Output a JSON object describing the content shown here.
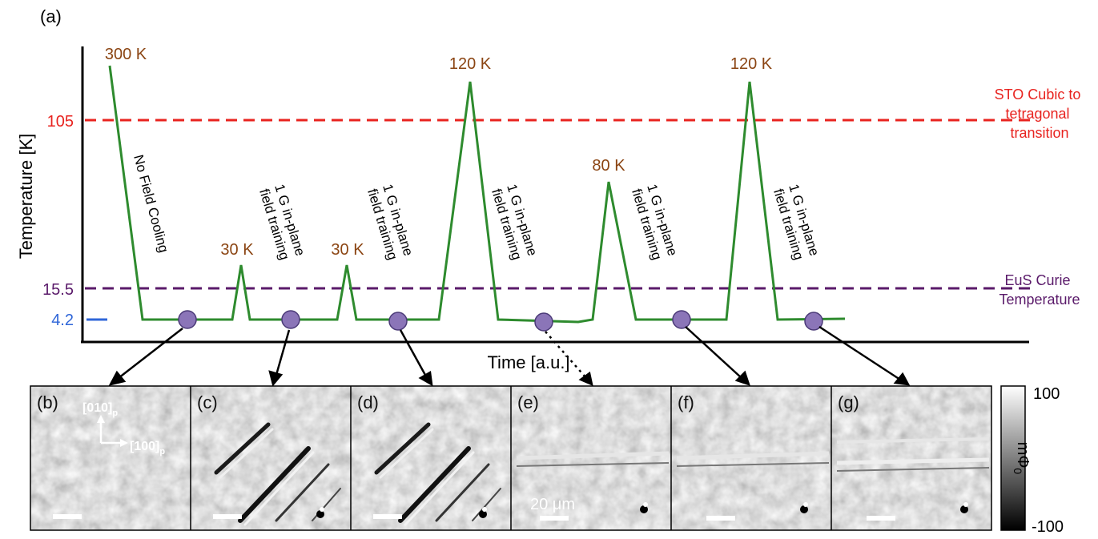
{
  "panel_letter": "(a)",
  "chart_data": {
    "type": "line",
    "xlabel": "Time [a.u.]",
    "ylabel": "Temperature [K]",
    "y_ticks": [
      {
        "value": 105,
        "label": "105",
        "color": "#e8231f"
      },
      {
        "value": 15.5,
        "label": "15.5",
        "color": "#5a1a6a"
      },
      {
        "value": 4.2,
        "label": "4.2",
        "color": "#2f66d8"
      }
    ],
    "temperature_profile": {
      "line_color": "#2e8b2e",
      "peak_labels": [
        {
          "label": "300 K",
          "value": 300
        },
        {
          "label": "30 K",
          "value": 30
        },
        {
          "label": "30 K",
          "value": 30
        },
        {
          "label": "120 K",
          "value": 120
        },
        {
          "label": "80 K",
          "value": 80
        },
        {
          "label": "120 K",
          "value": 120
        }
      ],
      "peak_label_color": "#8b4513",
      "segment_labels": [
        "No Field Cooling",
        "1 G in-plane field training",
        "1 G in-plane field training",
        "1 G in-plane field training",
        "1 G in-plane field training",
        "1 G in-plane field training"
      ],
      "marker_color": "#8b75b8"
    },
    "reference_lines": [
      {
        "value": 105,
        "label_lines": [
          "STO Cubic to",
          "tetragonal",
          "transition"
        ],
        "color": "#e8231f"
      },
      {
        "value": 15.5,
        "label_lines": [
          "EuS Curie",
          "Temperature"
        ],
        "color": "#5a1a6a"
      }
    ]
  },
  "images": {
    "panels": [
      "(b)",
      "(c)",
      "(d)",
      "(e)",
      "(f)",
      "(g)"
    ],
    "axis_y_label": "[010]",
    "axis_x_label": "[100]",
    "axis_subscript": "p",
    "scale_bar_label": "20 μm"
  },
  "colorbar": {
    "max_label": "100",
    "min_label": "-100",
    "unit_label": "mΦ",
    "unit_subscript": "0"
  }
}
